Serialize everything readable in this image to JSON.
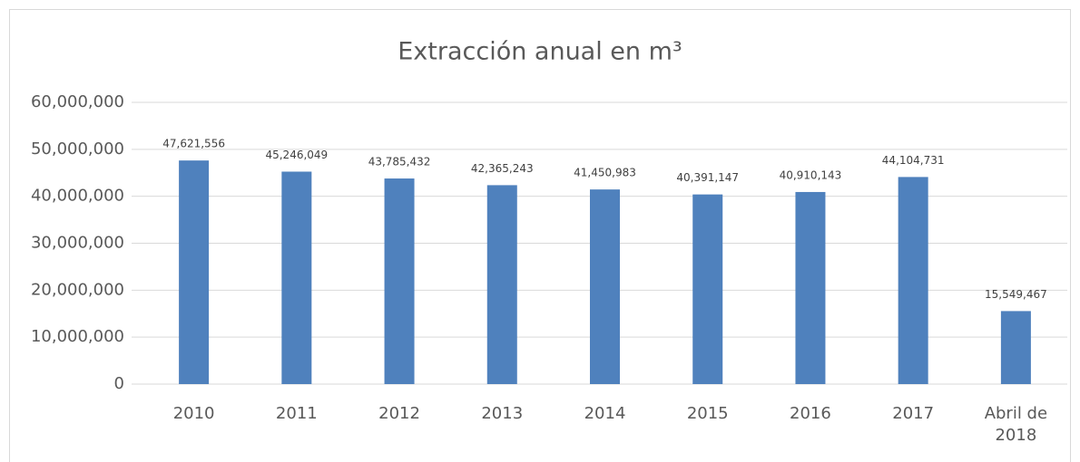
{
  "chart_data": {
    "type": "bar",
    "title": "Extracción anual en m³",
    "categories": [
      "2010",
      "2011",
      "2012",
      "2013",
      "2014",
      "2015",
      "2016",
      "2017",
      "Abril de 2018"
    ],
    "values": [
      47621556,
      45246049,
      43785432,
      42365243,
      41450983,
      40391147,
      40910143,
      44104731,
      15549467
    ],
    "value_labels": [
      "47,621,556",
      "45,246,049",
      "43,785,432",
      "42,365,243",
      "41,450,983",
      "40,391,147",
      "40,910,143",
      "44,104,731",
      "15,549,467"
    ],
    "color": "#4f81bd",
    "ylim": [
      0,
      60000000
    ],
    "yticks": [
      0,
      {
        "value": 10000000,
        "label": "10,000,000"
      },
      {
        "value": 20000000,
        "label": "20,000,000"
      },
      {
        "value": 30000000,
        "label": "30,000,000"
      },
      {
        "value": 40000000,
        "label": "40,000,000"
      },
      {
        "value": 50000000,
        "label": "50,000,000"
      },
      {
        "value": 60000000,
        "label": "60,000,000"
      }
    ],
    "grid": true
  }
}
